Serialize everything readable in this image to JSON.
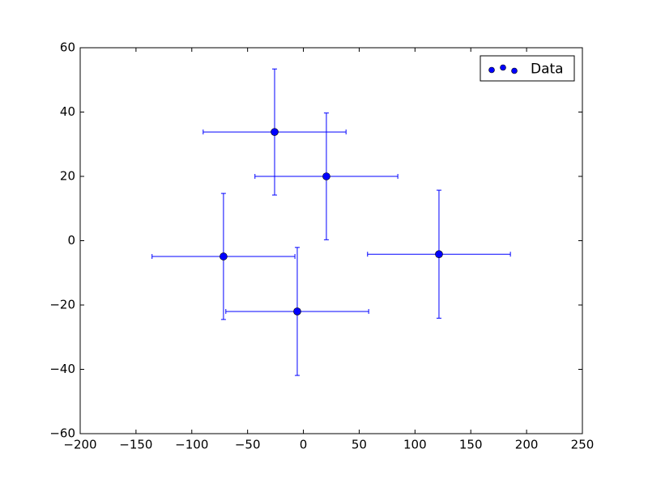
{
  "chart_data": {
    "type": "errorbar",
    "series": [
      {
        "name": "Data",
        "color": "#0000ff",
        "x": [
          -25.8,
          20.6,
          -71.6,
          -5.5,
          121.5
        ],
        "values": [
          33.8,
          20.0,
          -4.9,
          -22.0,
          -4.2
        ],
        "xerr": [
          64,
          64,
          64,
          64,
          64
        ],
        "yerr": [
          19.6,
          19.7,
          19.6,
          19.9,
          19.9
        ]
      }
    ],
    "xlim": [
      -200,
      250
    ],
    "xticks": [
      {
        "value": -200,
        "label": "−200"
      },
      {
        "value": -150,
        "label": "−150"
      },
      {
        "value": -100,
        "label": "−100"
      },
      {
        "value": -50,
        "label": "−50"
      },
      0,
      50,
      100,
      150,
      200,
      250
    ],
    "ylim": [
      -60,
      60
    ],
    "yticks": [
      {
        "value": -60,
        "label": "−60"
      },
      {
        "value": -40,
        "label": "−40"
      },
      {
        "value": -20,
        "label": "−20"
      },
      0,
      20,
      40,
      60
    ],
    "grid": false,
    "legend": "upper right"
  }
}
